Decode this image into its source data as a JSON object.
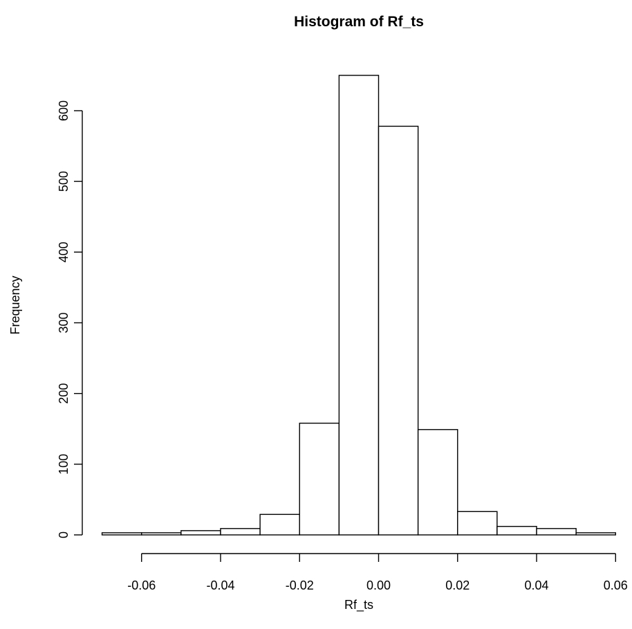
{
  "chart_data": {
    "type": "bar",
    "title": "Histogram of Rf_ts",
    "xlabel": "Rf_ts",
    "ylabel": "Frequency",
    "bin_edges": [
      -0.07,
      -0.06,
      -0.05,
      -0.04,
      -0.03,
      -0.02,
      -0.01,
      0.0,
      0.01,
      0.02,
      0.03,
      0.04,
      0.05,
      0.06
    ],
    "values": [
      3,
      3,
      6,
      9,
      29,
      158,
      650,
      578,
      149,
      33,
      12,
      9,
      3
    ],
    "xlim": [
      -0.06,
      0.06
    ],
    "ylim": [
      0,
      600
    ],
    "x_ticks": [
      -0.06,
      -0.04,
      -0.02,
      0.0,
      0.02,
      0.04,
      0.06
    ],
    "x_tick_labels": [
      "-0.06",
      "-0.04",
      "-0.02",
      "0.00",
      "0.02",
      "0.04",
      "0.06"
    ],
    "y_ticks": [
      0,
      100,
      200,
      300,
      400,
      500,
      600
    ],
    "y_tick_labels": [
      "0",
      "100",
      "200",
      "300",
      "400",
      "500",
      "600"
    ],
    "grid": false
  }
}
